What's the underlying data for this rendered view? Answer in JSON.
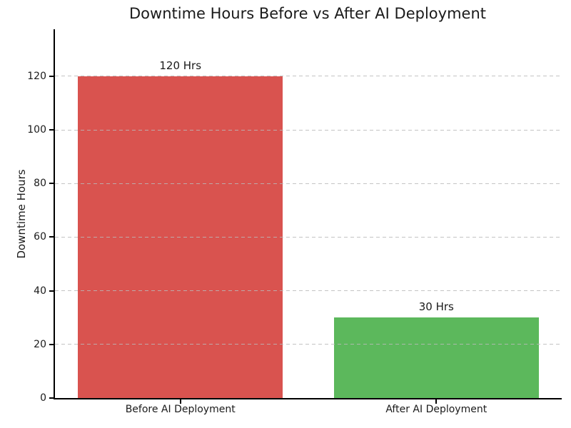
{
  "chart_data": {
    "type": "bar",
    "title": "Downtime Hours Before vs After AI Deployment",
    "xlabel": "",
    "ylabel": "Downtime Hours",
    "categories": [
      "Before AI Deployment",
      "After AI Deployment"
    ],
    "values": [
      120,
      30
    ],
    "bar_value_labels": [
      "120 Hrs",
      "30 Hrs"
    ],
    "bar_colors": [
      "#d9534f",
      "#5cb85c"
    ],
    "yticks": [
      0,
      20,
      40,
      60,
      80,
      100,
      120
    ],
    "ylim": [
      0,
      137.5
    ],
    "grid": "horizontal dashed, drawn over bars",
    "legend_position": "none",
    "background_color": "#ffffff",
    "text_color": "#1a1a1a",
    "axis_color": "#000000",
    "grid_color": "#b9b9b9"
  }
}
